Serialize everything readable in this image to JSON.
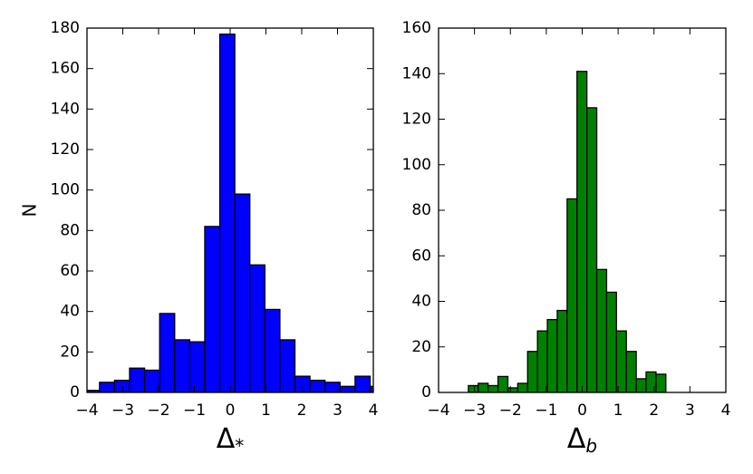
{
  "chart_data": [
    {
      "type": "histogram",
      "ylabel": "N",
      "xlabel": [
        "Δ",
        "*"
      ],
      "color": "#0000ff",
      "bins": [
        -4.07,
        -3.65,
        -3.23,
        -2.81,
        -2.39,
        -1.97,
        -1.55,
        -1.13,
        -0.71,
        -0.29,
        0.13,
        0.55,
        0.97,
        1.39,
        1.81,
        2.23,
        2.65,
        3.07,
        3.49,
        3.91,
        4.33
      ],
      "values": [
        1,
        5,
        6,
        12,
        11,
        39,
        26,
        25,
        82,
        177,
        98,
        63,
        41,
        26,
        8,
        6,
        5,
        3,
        8,
        3
      ],
      "xlim": [
        -4,
        4
      ],
      "ylim": [
        0,
        180
      ],
      "xticks": [
        {
          "value": -4,
          "label": "−4"
        },
        {
          "value": -3,
          "label": "−3"
        },
        {
          "value": -2,
          "label": "−2"
        },
        {
          "value": -1,
          "label": "−1"
        },
        0,
        1,
        2,
        3,
        4
      ],
      "yticks": [
        0,
        20,
        40,
        60,
        80,
        100,
        120,
        140,
        160,
        180
      ]
    },
    {
      "type": "histogram",
      "xlabel": [
        "Δ",
        "b"
      ],
      "color": "#008000",
      "bins": [
        -3.17,
        -2.895,
        -2.62,
        -2.345,
        -2.07,
        -1.795,
        -1.52,
        -1.245,
        -0.97,
        -0.695,
        -0.42,
        -0.145,
        0.13,
        0.405,
        0.68,
        0.955,
        1.23,
        1.505,
        1.78,
        2.055,
        2.33
      ],
      "values": [
        3,
        4,
        3,
        7,
        2,
        4,
        18,
        27,
        32,
        36,
        85,
        141,
        125,
        54,
        44,
        27,
        18,
        6,
        9,
        8
      ],
      "xlim": [
        -4,
        4
      ],
      "ylim": [
        0,
        160
      ],
      "xticks": [
        {
          "value": -4,
          "label": "−4"
        },
        {
          "value": -3,
          "label": "−3"
        },
        {
          "value": -2,
          "label": "−2"
        },
        {
          "value": -1,
          "label": "−1"
        },
        0,
        1,
        2,
        3,
        4
      ],
      "yticks": [
        0,
        20,
        40,
        60,
        80,
        100,
        120,
        140,
        160
      ]
    }
  ]
}
